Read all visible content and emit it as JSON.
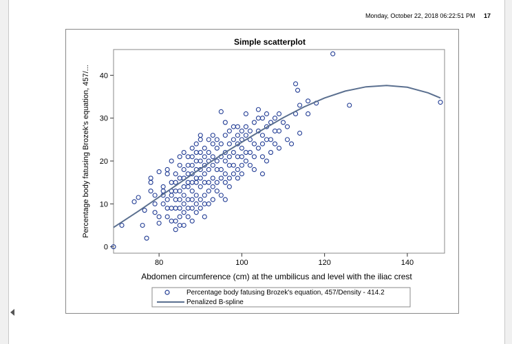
{
  "header": {
    "timestamp": "Monday, October 22, 2018 06:22:51 PM",
    "page_number": "17"
  },
  "chart_data": {
    "type": "scatter",
    "title": "Simple scatterplot",
    "xlabel": "Abdomen circumference (cm) at the umbilicus and level with the iliac crest",
    "ylabel": "Percentage body fatusing Brozek's equation, 457/...",
    "xlim": [
      69,
      149
    ],
    "ylim": [
      -1.5,
      46
    ],
    "x_ticks": [
      80,
      100,
      120,
      140
    ],
    "y_ticks": [
      0,
      10,
      20,
      30,
      40
    ],
    "grid": false,
    "legend_position": "bottom",
    "marker_color": "#1f3a93",
    "line_color": "#5a6f8f",
    "series": [
      {
        "name": "Percentage body fatusing Brozek's equation, 457/Density - 414.2",
        "kind": "scatter",
        "points": [
          [
            69,
            0
          ],
          [
            71,
            5
          ],
          [
            74,
            10.5
          ],
          [
            75,
            11.5
          ],
          [
            76,
            5
          ],
          [
            76.5,
            8.5
          ],
          [
            77,
            2
          ],
          [
            78,
            13
          ],
          [
            78,
            15
          ],
          [
            78,
            16
          ],
          [
            79,
            8
          ],
          [
            79,
            10
          ],
          [
            79,
            12
          ],
          [
            80,
            5.5
          ],
          [
            80,
            7
          ],
          [
            80,
            17.5
          ],
          [
            81,
            10
          ],
          [
            81,
            12
          ],
          [
            81,
            13
          ],
          [
            81,
            14
          ],
          [
            82,
            7
          ],
          [
            82,
            9
          ],
          [
            82,
            11
          ],
          [
            82,
            17
          ],
          [
            82,
            18
          ],
          [
            83,
            6
          ],
          [
            83,
            9
          ],
          [
            83,
            12
          ],
          [
            83,
            13
          ],
          [
            83,
            15
          ],
          [
            83,
            20
          ],
          [
            84,
            4
          ],
          [
            84,
            6
          ],
          [
            84,
            9
          ],
          [
            84,
            11
          ],
          [
            84,
            13
          ],
          [
            84,
            15
          ],
          [
            84,
            17
          ],
          [
            85,
            5
          ],
          [
            85,
            7
          ],
          [
            85,
            9
          ],
          [
            85,
            11
          ],
          [
            85,
            13
          ],
          [
            85,
            16
          ],
          [
            85,
            19
          ],
          [
            85,
            21
          ],
          [
            86,
            5
          ],
          [
            86,
            8
          ],
          [
            86,
            10
          ],
          [
            86,
            12
          ],
          [
            86,
            14
          ],
          [
            86,
            16
          ],
          [
            86,
            18
          ],
          [
            86,
            22
          ],
          [
            87,
            7
          ],
          [
            87,
            9
          ],
          [
            87,
            11
          ],
          [
            87,
            14
          ],
          [
            87,
            15
          ],
          [
            87,
            17
          ],
          [
            87,
            19
          ],
          [
            87,
            21
          ],
          [
            88,
            6
          ],
          [
            88,
            9
          ],
          [
            88,
            11
          ],
          [
            88,
            13
          ],
          [
            88,
            15
          ],
          [
            88,
            17
          ],
          [
            88,
            19
          ],
          [
            88,
            21
          ],
          [
            88,
            23
          ],
          [
            89,
            8
          ],
          [
            89,
            10
          ],
          [
            89,
            12
          ],
          [
            89,
            15
          ],
          [
            89,
            16
          ],
          [
            89,
            18
          ],
          [
            89,
            20
          ],
          [
            89,
            22
          ],
          [
            89,
            24
          ],
          [
            90,
            9
          ],
          [
            90,
            11
          ],
          [
            90,
            14
          ],
          [
            90,
            16
          ],
          [
            90,
            18
          ],
          [
            90,
            20
          ],
          [
            90,
            22
          ],
          [
            90,
            25
          ],
          [
            90,
            26
          ],
          [
            91,
            7
          ],
          [
            91,
            10
          ],
          [
            91,
            12
          ],
          [
            91,
            15
          ],
          [
            91,
            17
          ],
          [
            91,
            19
          ],
          [
            91,
            21
          ],
          [
            91,
            23
          ],
          [
            92,
            10
          ],
          [
            92,
            13
          ],
          [
            92,
            15
          ],
          [
            92,
            18
          ],
          [
            92,
            20
          ],
          [
            92,
            22
          ],
          [
            92,
            25
          ],
          [
            93,
            11
          ],
          [
            93,
            14
          ],
          [
            93,
            16
          ],
          [
            93,
            19
          ],
          [
            93,
            21
          ],
          [
            93,
            24
          ],
          [
            93,
            26
          ],
          [
            94,
            13
          ],
          [
            94,
            15
          ],
          [
            94,
            18
          ],
          [
            94,
            20
          ],
          [
            94,
            23
          ],
          [
            94,
            25
          ],
          [
            95,
            12
          ],
          [
            95,
            16
          ],
          [
            95,
            18
          ],
          [
            95,
            21
          ],
          [
            95,
            24
          ],
          [
            95,
            31.5
          ],
          [
            96,
            11
          ],
          [
            96,
            15
          ],
          [
            96,
            17
          ],
          [
            96,
            20
          ],
          [
            96,
            22
          ],
          [
            96,
            26
          ],
          [
            96,
            29
          ],
          [
            97,
            14
          ],
          [
            97,
            16
          ],
          [
            97,
            19
          ],
          [
            97,
            21
          ],
          [
            97,
            24
          ],
          [
            97,
            27
          ],
          [
            98,
            17
          ],
          [
            98,
            19
          ],
          [
            98,
            22
          ],
          [
            98,
            25
          ],
          [
            98,
            28
          ],
          [
            99,
            16
          ],
          [
            99,
            18
          ],
          [
            99,
            21
          ],
          [
            99,
            24
          ],
          [
            99,
            26
          ],
          [
            99,
            28
          ],
          [
            100,
            17
          ],
          [
            100,
            19
          ],
          [
            100,
            21
          ],
          [
            100,
            23
          ],
          [
            100,
            25
          ],
          [
            100,
            27
          ],
          [
            101,
            20
          ],
          [
            101,
            22
          ],
          [
            101,
            26
          ],
          [
            101,
            28
          ],
          [
            101,
            31
          ],
          [
            102,
            19
          ],
          [
            102,
            22
          ],
          [
            102,
            25
          ],
          [
            102,
            27
          ],
          [
            103,
            18
          ],
          [
            103,
            21
          ],
          [
            103,
            24
          ],
          [
            103,
            29
          ],
          [
            104,
            23
          ],
          [
            104,
            27
          ],
          [
            104,
            30
          ],
          [
            104,
            32
          ],
          [
            105,
            17
          ],
          [
            105,
            21
          ],
          [
            105,
            24
          ],
          [
            105,
            26
          ],
          [
            105,
            30
          ],
          [
            106,
            20
          ],
          [
            106,
            25
          ],
          [
            106,
            28
          ],
          [
            106,
            31
          ],
          [
            107,
            22
          ],
          [
            107,
            25
          ],
          [
            107,
            29
          ],
          [
            108,
            24
          ],
          [
            108,
            27
          ],
          [
            108,
            30
          ],
          [
            109,
            23
          ],
          [
            109,
            27
          ],
          [
            109,
            31
          ],
          [
            110,
            29
          ],
          [
            111,
            25
          ],
          [
            111,
            28
          ],
          [
            112,
            24
          ],
          [
            113,
            38
          ],
          [
            113,
            31
          ],
          [
            113.5,
            36.5
          ],
          [
            114,
            26.5
          ],
          [
            114,
            33
          ],
          [
            116,
            34
          ],
          [
            116,
            31
          ],
          [
            118,
            33.5
          ],
          [
            122,
            45
          ],
          [
            126,
            33
          ],
          [
            148,
            33.7
          ]
        ]
      },
      {
        "name": "Penalized B-spline",
        "kind": "line",
        "points": [
          [
            69,
            4.5
          ],
          [
            75,
            8.3
          ],
          [
            80,
            11.6
          ],
          [
            85,
            14.9
          ],
          [
            90,
            18.2
          ],
          [
            95,
            21.4
          ],
          [
            100,
            24.4
          ],
          [
            105,
            27.3
          ],
          [
            110,
            30.1
          ],
          [
            115,
            32.6
          ],
          [
            120,
            34.7
          ],
          [
            125,
            36.3
          ],
          [
            130,
            37.3
          ],
          [
            135,
            37.6
          ],
          [
            140,
            37.2
          ],
          [
            145,
            35.9
          ],
          [
            148,
            34.7
          ]
        ]
      }
    ]
  }
}
